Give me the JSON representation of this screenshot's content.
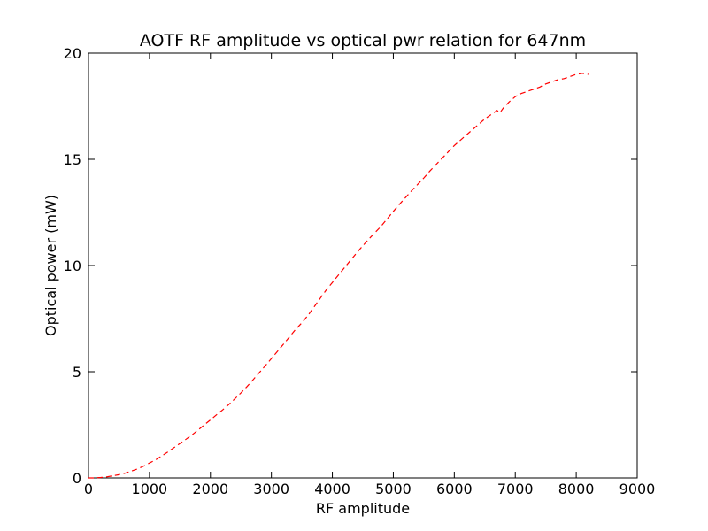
{
  "chart_data": {
    "type": "line",
    "title": "AOTF RF amplitude vs optical pwr relation for 647nm",
    "xlabel": "RF amplitude",
    "ylabel": "Optical power (mW)",
    "xlim": [
      0,
      9000
    ],
    "ylim": [
      0,
      20
    ],
    "xticks": [
      0,
      1000,
      2000,
      3000,
      4000,
      5000,
      6000,
      7000,
      8000,
      9000
    ],
    "xtick_labels": [
      "0",
      "1000",
      "2000",
      "3000",
      "4000",
      "5000",
      "6000",
      "7000",
      "8000",
      "9000"
    ],
    "yticks": [
      0,
      5,
      10,
      15,
      20
    ],
    "ytick_labels": [
      "0",
      "5",
      "10",
      "15",
      "20"
    ],
    "grid": false,
    "legend": "none",
    "series": [
      {
        "color": "#ff0000",
        "linestyle": "dashed",
        "x": [
          0,
          100,
          200,
          300,
          400,
          500,
          600,
          700,
          800,
          900,
          1000,
          1100,
          1200,
          1300,
          1400,
          1500,
          1600,
          1700,
          1800,
          1900,
          2000,
          2100,
          2200,
          2300,
          2400,
          2500,
          2600,
          2700,
          2800,
          2900,
          3000,
          3100,
          3200,
          3300,
          3400,
          3500,
          3600,
          3700,
          3800,
          3900,
          4000,
          4100,
          4200,
          4300,
          4400,
          4500,
          4600,
          4700,
          4800,
          4900,
          5000,
          5100,
          5200,
          5300,
          5400,
          5500,
          5600,
          5700,
          5800,
          5900,
          6000,
          6100,
          6200,
          6300,
          6400,
          6500,
          6600,
          6700,
          6750,
          6800,
          6900,
          7000,
          7100,
          7200,
          7300,
          7400,
          7500,
          7600,
          7700,
          7800,
          7900,
          8000,
          8100,
          8200
        ],
        "y": [
          0.0,
          0.0,
          0.02,
          0.05,
          0.1,
          0.15,
          0.22,
          0.32,
          0.42,
          0.55,
          0.7,
          0.85,
          1.03,
          1.22,
          1.42,
          1.62,
          1.82,
          2.03,
          2.26,
          2.5,
          2.73,
          2.97,
          3.2,
          3.45,
          3.72,
          4.0,
          4.3,
          4.62,
          4.95,
          5.28,
          5.62,
          5.96,
          6.3,
          6.65,
          7.0,
          7.3,
          7.65,
          8.05,
          8.45,
          8.85,
          9.2,
          9.55,
          9.9,
          10.25,
          10.6,
          10.93,
          11.25,
          11.55,
          11.85,
          12.2,
          12.55,
          12.88,
          13.2,
          13.52,
          13.82,
          14.12,
          14.45,
          14.75,
          15.05,
          15.35,
          15.65,
          15.9,
          16.15,
          16.4,
          16.65,
          16.9,
          17.1,
          17.3,
          17.2,
          17.4,
          17.7,
          17.95,
          18.1,
          18.2,
          18.3,
          18.4,
          18.55,
          18.65,
          18.75,
          18.8,
          18.9,
          19.0,
          19.05,
          19.0
        ]
      }
    ]
  }
}
